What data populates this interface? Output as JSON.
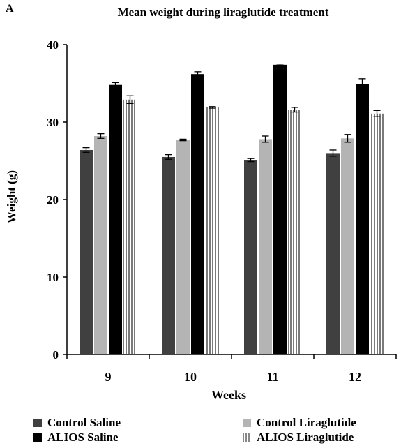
{
  "panel_letter": "A",
  "chart_data": {
    "type": "bar",
    "title": "Mean weight during liraglutide treatment",
    "xlabel": "Weeks",
    "ylabel": "Weight (g)",
    "categories": [
      "9",
      "10",
      "11",
      "12"
    ],
    "ylim": [
      0,
      40
    ],
    "yticks": [
      0,
      10,
      20,
      30,
      40
    ],
    "grid": false,
    "legend_position": "bottom",
    "series": [
      {
        "name": "Control Saline",
        "color": "#404040",
        "pattern": "solid",
        "values": [
          26.4,
          25.5,
          25.1,
          26.0
        ],
        "errors": [
          0.3,
          0.3,
          0.2,
          0.4
        ]
      },
      {
        "name": "Control Liraglutide",
        "color": "#b4b4b4",
        "pattern": "solid",
        "values": [
          28.2,
          27.7,
          27.8,
          27.9
        ],
        "errors": [
          0.3,
          0.1,
          0.4,
          0.5
        ]
      },
      {
        "name": "ALIOS Saline",
        "color": "#000000",
        "pattern": "solid",
        "values": [
          34.8,
          36.2,
          37.4,
          34.9
        ],
        "errors": [
          0.3,
          0.3,
          0.1,
          0.7
        ]
      },
      {
        "name": "ALIOS Liraglutide",
        "color": "#8a8a8a",
        "pattern": "striped",
        "values": [
          32.9,
          31.9,
          31.6,
          31.1
        ],
        "errors": [
          0.5,
          0.1,
          0.3,
          0.4
        ]
      }
    ]
  }
}
